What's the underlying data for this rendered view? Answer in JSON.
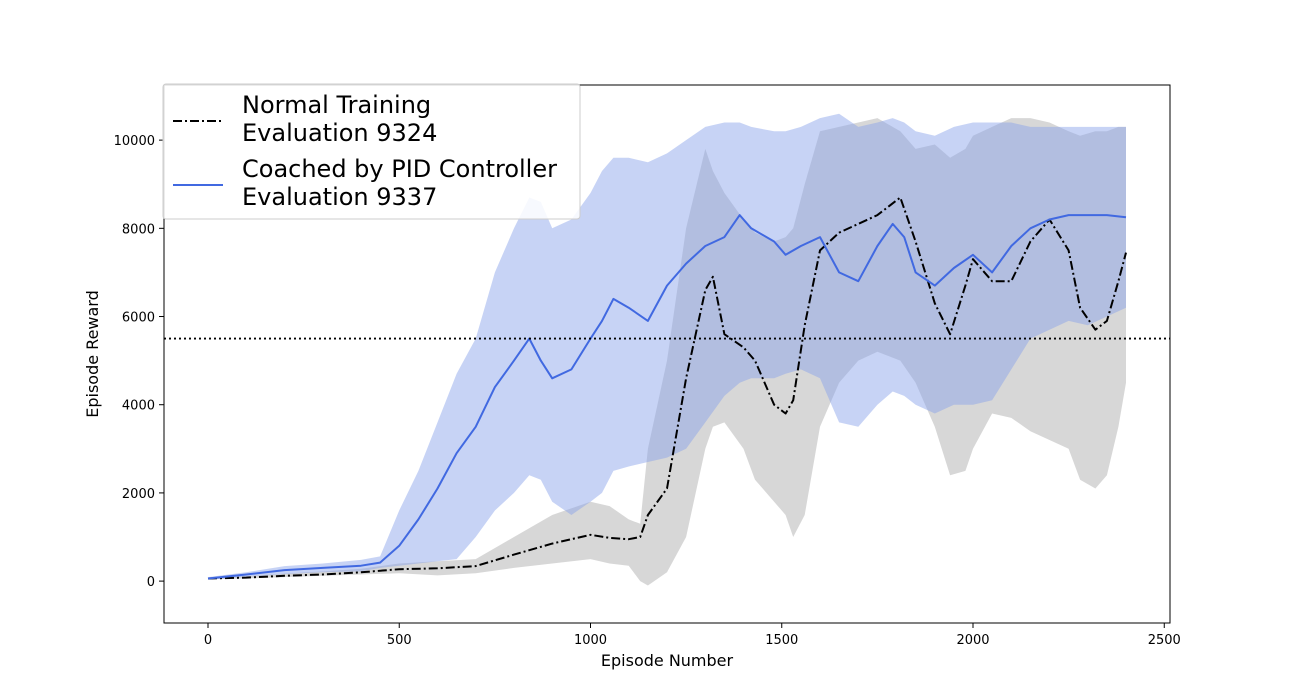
{
  "chart_data": {
    "type": "line",
    "title": "",
    "xlabel": "Episode Number",
    "ylabel": "Episode Reward",
    "xlim": [
      -115,
      2515
    ],
    "ylim": [
      -950,
      11250
    ],
    "xticks": [
      0,
      500,
      1000,
      1500,
      2000,
      2500
    ],
    "yticks": [
      0,
      2000,
      4000,
      6000,
      8000,
      10000
    ],
    "grid": false,
    "legend_position": "top-left",
    "reference_line": {
      "y": 5500,
      "style": "dotted",
      "color": "#000000"
    },
    "series": [
      {
        "name_lines": [
          "Normal Training",
          "Evaluation 9324"
        ],
        "color": "#000000",
        "band_color": "#b0b0b0",
        "line_style": "dash-dot",
        "x": [
          0,
          100,
          200,
          300,
          400,
          500,
          600,
          700,
          800,
          900,
          1000,
          1050,
          1100,
          1130,
          1150,
          1200,
          1250,
          1300,
          1320,
          1350,
          1400,
          1430,
          1480,
          1510,
          1530,
          1560,
          1600,
          1650,
          1700,
          1750,
          1810,
          1850,
          1900,
          1940,
          1980,
          2000,
          2050,
          2100,
          2150,
          2200,
          2250,
          2280,
          2320,
          2350,
          2380,
          2400
        ],
        "y": [
          60,
          80,
          120,
          150,
          200,
          270,
          290,
          340,
          600,
          850,
          1050,
          980,
          950,
          1000,
          1500,
          2100,
          4600,
          6600,
          6900,
          5600,
          5300,
          5000,
          4000,
          3800,
          4100,
          5800,
          7500,
          7900,
          8100,
          8300,
          8700,
          7700,
          6300,
          5600,
          6700,
          7300,
          6800,
          6800,
          7700,
          8200,
          7500,
          6200,
          5700,
          5900,
          6800,
          7450
        ],
        "upper": [
          80,
          110,
          170,
          220,
          280,
          400,
          450,
          500,
          1000,
          1500,
          1800,
          1700,
          1400,
          1300,
          3000,
          5000,
          8000,
          9800,
          9300,
          8800,
          8200,
          7900,
          7700,
          7800,
          8000,
          9000,
          10200,
          10300,
          10400,
          10500,
          10200,
          9800,
          9900,
          9600,
          9800,
          10100,
          10300,
          10500,
          10500,
          10400,
          10200,
          10100,
          10200,
          10200,
          10300,
          10300
        ],
        "lower": [
          40,
          60,
          90,
          120,
          150,
          180,
          130,
          180,
          300,
          400,
          500,
          400,
          350,
          0,
          -100,
          200,
          1000,
          3000,
          3500,
          3600,
          3000,
          2300,
          1800,
          1500,
          1000,
          1500,
          3500,
          4500,
          5000,
          5200,
          5000,
          4500,
          3500,
          2400,
          2500,
          3000,
          3800,
          3700,
          3400,
          3200,
          3000,
          2300,
          2100,
          2400,
          3500,
          4500
        ]
      },
      {
        "name_lines": [
          "Coached by PID Controller",
          "Evaluation 9337"
        ],
        "color": "#4169e1",
        "band_color": "#8aa2ea",
        "line_style": "solid",
        "x": [
          0,
          100,
          200,
          300,
          400,
          450,
          500,
          550,
          600,
          650,
          700,
          750,
          800,
          840,
          870,
          900,
          950,
          1000,
          1030,
          1060,
          1100,
          1150,
          1200,
          1250,
          1300,
          1350,
          1390,
          1420,
          1480,
          1510,
          1550,
          1600,
          1650,
          1700,
          1750,
          1790,
          1820,
          1850,
          1900,
          1950,
          2000,
          2050,
          2100,
          2150,
          2200,
          2250,
          2300,
          2350,
          2400
        ],
        "y": [
          60,
          150,
          250,
          300,
          350,
          420,
          800,
          1400,
          2100,
          2900,
          3500,
          4400,
          5000,
          5500,
          5000,
          4600,
          4800,
          5500,
          5900,
          6400,
          6200,
          5900,
          6700,
          7200,
          7600,
          7800,
          8300,
          8000,
          7700,
          7400,
          7600,
          7800,
          7000,
          6800,
          7600,
          8100,
          7800,
          7000,
          6700,
          7100,
          7400,
          7000,
          7600,
          8000,
          8200,
          8300,
          8300,
          8300,
          8250
        ],
        "upper": [
          90,
          200,
          340,
          400,
          480,
          560,
          1600,
          2500,
          3600,
          4700,
          5500,
          7000,
          8000,
          8700,
          8600,
          8000,
          8200,
          8800,
          9300,
          9600,
          9600,
          9500,
          9700,
          10000,
          10300,
          10400,
          10400,
          10300,
          10200,
          10200,
          10300,
          10500,
          10600,
          10300,
          10400,
          10500,
          10400,
          10200,
          10100,
          10300,
          10400,
          10400,
          10400,
          10300,
          10300,
          10300,
          10300,
          10300,
          10300
        ],
        "lower": [
          30,
          100,
          160,
          200,
          220,
          300,
          350,
          400,
          450,
          500,
          1000,
          1600,
          2000,
          2400,
          2300,
          1800,
          1500,
          1800,
          2000,
          2500,
          2600,
          2700,
          2800,
          3000,
          3600,
          4200,
          4500,
          4600,
          4600,
          4700,
          4800,
          4600,
          3600,
          3500,
          4000,
          4300,
          4200,
          4000,
          3800,
          4000,
          4000,
          4100,
          4800,
          5500,
          5700,
          5900,
          5800,
          6000,
          6200
        ]
      }
    ]
  }
}
